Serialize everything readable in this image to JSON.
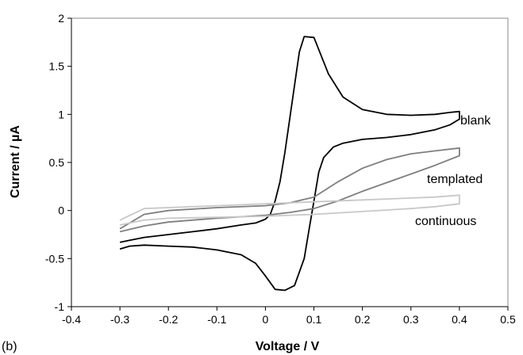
{
  "chart_data": {
    "type": "line",
    "panel_label": "(b)",
    "xlabel": "Voltage / V",
    "ylabel": "Current / µA",
    "xlim": [
      -0.4,
      0.5
    ],
    "ylim": [
      -1,
      2
    ],
    "x_ticks": [
      -0.4,
      -0.3,
      -0.2,
      -0.1,
      0,
      0.1,
      0.2,
      0.3,
      0.4,
      0.5
    ],
    "x_tick_labels": [
      "-0.4",
      "-0.3",
      "-0.2",
      "-0.1",
      "0",
      "0.1",
      "0.2",
      "0.3",
      "0.4",
      "0.5"
    ],
    "y_ticks": [
      -1,
      -0.5,
      0,
      0.5,
      1,
      1.5,
      2
    ],
    "y_tick_labels": [
      "-1",
      "-0.5",
      "0",
      "0.5",
      "1",
      "1.5",
      "2"
    ],
    "grid": false,
    "series": [
      {
        "name": "blank",
        "color": "#000000",
        "x": [
          -0.3,
          -0.28,
          -0.25,
          -0.2,
          -0.15,
          -0.1,
          -0.05,
          -0.02,
          0.0,
          0.02,
          0.04,
          0.06,
          0.08,
          0.09,
          0.1,
          0.11,
          0.12,
          0.14,
          0.16,
          0.2,
          0.25,
          0.3,
          0.35,
          0.38,
          0.4,
          0.4,
          0.38,
          0.35,
          0.3,
          0.25,
          0.2,
          0.16,
          0.13,
          0.1,
          0.08,
          0.07,
          0.06,
          0.05,
          0.04,
          0.03,
          0.02,
          0.01,
          0.0,
          -0.02,
          -0.05,
          -0.1,
          -0.15,
          -0.2,
          -0.25,
          -0.28,
          -0.3
        ],
        "y": [
          -0.4,
          -0.37,
          -0.36,
          -0.37,
          -0.38,
          -0.41,
          -0.46,
          -0.55,
          -0.68,
          -0.82,
          -0.83,
          -0.78,
          -0.5,
          -0.2,
          0.1,
          0.4,
          0.55,
          0.66,
          0.7,
          0.74,
          0.76,
          0.79,
          0.84,
          0.89,
          0.95,
          1.03,
          1.02,
          1.0,
          0.99,
          1.0,
          1.05,
          1.18,
          1.42,
          1.8,
          1.81,
          1.65,
          1.3,
          0.95,
          0.6,
          0.3,
          0.1,
          -0.04,
          -0.09,
          -0.13,
          -0.15,
          -0.19,
          -0.22,
          -0.25,
          -0.28,
          -0.31,
          -0.33
        ]
      },
      {
        "name": "templated",
        "color": "#7f7f7f",
        "x": [
          -0.3,
          -0.25,
          -0.2,
          -0.1,
          0.0,
          0.05,
          0.1,
          0.15,
          0.2,
          0.25,
          0.3,
          0.35,
          0.4,
          0.4,
          0.35,
          0.3,
          0.25,
          0.2,
          0.15,
          0.1,
          0.05,
          0.0,
          -0.1,
          -0.2,
          -0.25,
          -0.3
        ],
        "y": [
          -0.22,
          -0.16,
          -0.12,
          -0.08,
          -0.05,
          -0.02,
          0.02,
          0.1,
          0.2,
          0.29,
          0.38,
          0.47,
          0.57,
          0.65,
          0.62,
          0.59,
          0.53,
          0.44,
          0.3,
          0.14,
          0.08,
          0.05,
          0.03,
          0.0,
          -0.04,
          -0.19
        ]
      },
      {
        "name": "continuous",
        "color": "#c8c8c8",
        "x": [
          -0.3,
          -0.25,
          -0.2,
          -0.1,
          0.0,
          0.1,
          0.2,
          0.3,
          0.35,
          0.4,
          0.4,
          0.35,
          0.3,
          0.2,
          0.1,
          0.0,
          -0.1,
          -0.2,
          -0.25,
          -0.3
        ],
        "y": [
          -0.15,
          -0.1,
          -0.08,
          -0.07,
          -0.06,
          -0.04,
          -0.01,
          0.02,
          0.04,
          0.07,
          0.16,
          0.14,
          0.13,
          0.11,
          0.09,
          0.07,
          0.05,
          0.03,
          0.02,
          -0.1
        ]
      }
    ]
  }
}
